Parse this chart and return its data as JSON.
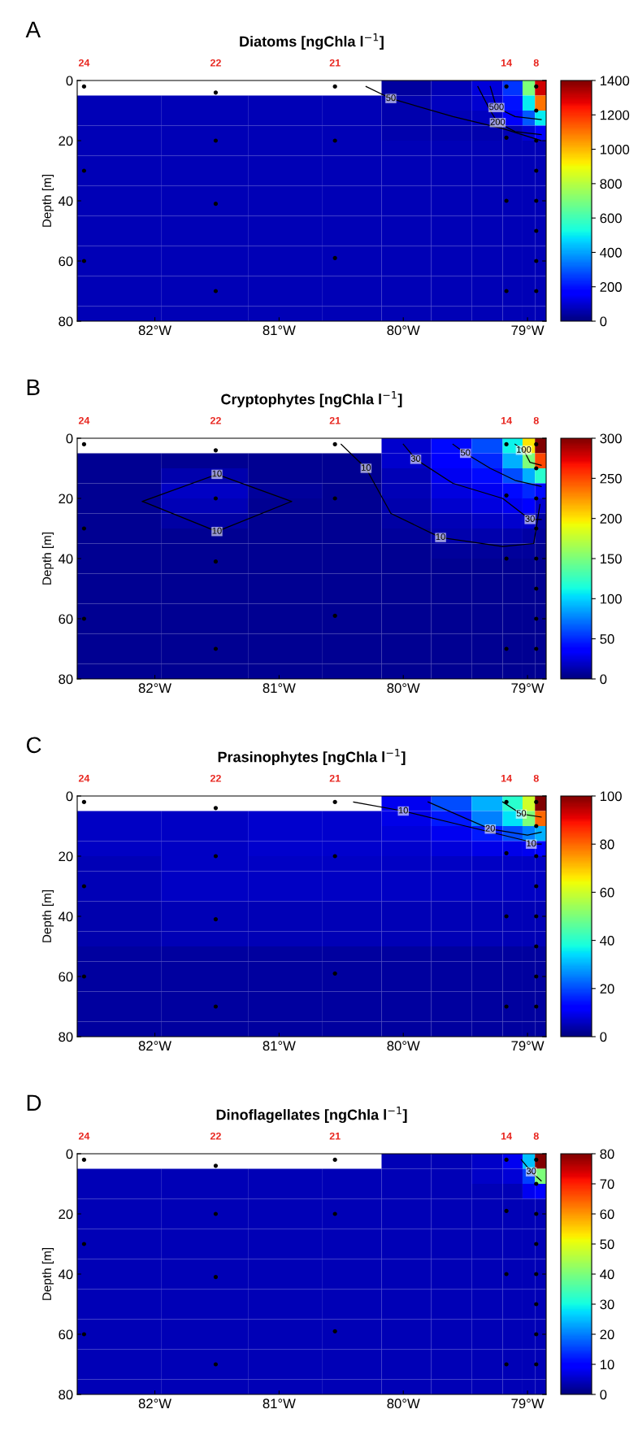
{
  "chart_data": [
    {
      "type": "heatmap",
      "title": "Diatoms [ngChla l$^{−1}$]",
      "ylabel": "Depth [m]",
      "annotations": [
        "A",
        {
          "text": "24",
          "x": -82.57,
          "y": 2
        },
        {
          "text": "22",
          "x": -81.51,
          "y": 4
        },
        {
          "text": "21",
          "x": -80.55,
          "y": 2
        },
        {
          "text": "14",
          "x": -79.17,
          "y": 2
        },
        {
          "text": "8",
          "x": -78.93,
          "y": 2
        },
        {
          "text": "50",
          "x": -80.1,
          "y": 6
        },
        {
          "text": "500",
          "x": -79.25,
          "y": 9
        },
        {
          "text": "200",
          "x": -79.24,
          "y": 14
        }
      ],
      "x": [
        -82.3,
        -81.6,
        -80.9,
        -80.4,
        -79.95,
        -79.6,
        -79.3,
        -79.1,
        -78.98,
        -78.9
      ],
      "cells": [
        [
          null,
          null,
          null,
          null,
          40,
          70,
          110,
          250,
          700,
          1300
        ],
        [
          70,
          70,
          70,
          70,
          60,
          80,
          100,
          200,
          500,
          1100
        ],
        [
          70,
          70,
          70,
          70,
          60,
          70,
          80,
          150,
          300,
          500
        ],
        [
          70,
          70,
          70,
          70,
          60,
          60,
          60,
          70,
          100,
          150
        ],
        [
          70,
          70,
          70,
          70,
          70,
          70,
          70,
          70,
          70,
          70
        ],
        [
          70,
          70,
          70,
          70,
          70,
          70,
          70,
          70,
          70,
          70
        ],
        [
          70,
          70,
          70,
          70,
          70,
          70,
          70,
          70,
          70,
          70
        ],
        [
          70,
          70,
          70,
          70,
          70,
          70,
          70,
          70,
          70,
          70
        ],
        [
          70,
          70,
          70,
          70,
          70,
          70,
          70,
          70,
          70,
          70
        ],
        [
          70,
          70,
          70,
          70,
          70,
          70,
          70,
          70,
          70,
          70
        ],
        [
          70,
          70,
          70,
          70,
          70,
          70,
          70,
          70,
          70,
          70
        ],
        [
          70,
          70,
          70,
          70,
          70,
          70,
          70,
          70,
          70,
          70
        ],
        [
          70,
          70,
          70,
          70,
          70,
          70,
          70,
          70,
          70,
          70
        ],
        [
          70,
          70,
          70,
          70,
          70,
          70,
          70,
          70,
          70,
          70
        ],
        [
          70,
          70,
          70,
          70,
          70,
          70,
          70,
          70,
          70,
          70
        ],
        [
          70,
          70,
          70,
          70,
          70,
          70,
          70,
          70,
          70,
          70
        ]
      ],
      "clim": [
        0,
        1400
      ],
      "cticks": [
        0,
        200,
        400,
        600,
        800,
        1000,
        1200,
        1400
      ],
      "xlim": [
        -82.625,
        -78.85
      ],
      "xticks": [
        {
          "value": -82,
          "label": "82°W"
        },
        {
          "value": -81,
          "label": "81°W"
        },
        {
          "value": -80,
          "label": "80°W"
        },
        {
          "value": -79,
          "label": "79°W"
        }
      ],
      "ylim": [
        80,
        0
      ],
      "yticks": [
        0,
        20,
        40,
        60,
        80
      ],
      "series": [
        {
          "type": "scatter",
          "marker": "circle",
          "color": "#000000",
          "x": [
            -82.57,
            -82.57,
            -82.57,
            -81.51,
            -81.51,
            -81.51,
            -81.51,
            -80.55,
            -80.55,
            -80.55,
            -79.17,
            -79.17,
            -79.17,
            -79.17,
            -78.93,
            -78.93,
            -78.93,
            -78.93,
            -78.93,
            -78.93,
            -78.93,
            -78.93
          ],
          "values": [
            2,
            30,
            60,
            4,
            20,
            41,
            70,
            2,
            20,
            59,
            2,
            19,
            40,
            70,
            2,
            10,
            20,
            30,
            40,
            50,
            60,
            70
          ]
        },
        {
          "type": "line",
          "color": "#000000",
          "x": [
            -80.3,
            -80.1,
            -79.6,
            -79.2,
            -78.89
          ],
          "values": [
            2,
            6,
            12,
            16,
            20
          ]
        },
        {
          "type": "line",
          "color": "#000000",
          "x": [
            -79.3,
            -79.25,
            -79.1,
            -78.89
          ],
          "values": [
            2,
            9,
            12,
            13
          ]
        },
        {
          "type": "line",
          "color": "#000000",
          "x": [
            -79.4,
            -79.3,
            -79.24,
            -79.1,
            -78.89
          ],
          "values": [
            2,
            10,
            14,
            17,
            18
          ]
        }
      ]
    },
    {
      "type": "heatmap",
      "title": "Cryptophytes [ngChla l$^{−1}$]",
      "ylabel": "Depth [m]",
      "annotations": [
        "B",
        {
          "text": "24",
          "x": -82.57,
          "y": 2
        },
        {
          "text": "22",
          "x": -81.51,
          "y": 4
        },
        {
          "text": "21",
          "x": -80.55,
          "y": 2
        },
        {
          "text": "14",
          "x": -79.17,
          "y": 2
        },
        {
          "text": "8",
          "x": -78.93,
          "y": 2
        },
        {
          "text": "10",
          "x": -81.5,
          "y": 12
        },
        {
          "text": "10",
          "x": -81.5,
          "y": 31
        },
        {
          "text": "10",
          "x": -80.3,
          "y": 10
        },
        {
          "text": "30",
          "x": -79.9,
          "y": 7
        },
        {
          "text": "50",
          "x": -79.5,
          "y": 5
        },
        {
          "text": "100",
          "x": -79.03,
          "y": 4
        },
        {
          "text": "30",
          "x": -78.98,
          "y": 27
        },
        {
          "text": "10",
          "x": -79.7,
          "y": 33
        }
      ],
      "x": [
        -82.3,
        -81.6,
        -80.9,
        -80.4,
        -79.95,
        -79.6,
        -79.3,
        -79.1,
        -78.98,
        -78.9
      ],
      "cells": [
        [
          null,
          null,
          null,
          null,
          20,
          40,
          60,
          110,
          200,
          300
        ],
        [
          5,
          5,
          5,
          5,
          20,
          35,
          50,
          90,
          150,
          250
        ],
        [
          5,
          12,
          5,
          5,
          15,
          30,
          40,
          60,
          90,
          120
        ],
        [
          5,
          18,
          8,
          5,
          15,
          25,
          30,
          40,
          50,
          40
        ],
        [
          5,
          15,
          5,
          5,
          12,
          20,
          25,
          30,
          35,
          20
        ],
        [
          5,
          10,
          5,
          5,
          10,
          15,
          18,
          20,
          20,
          10
        ],
        [
          5,
          5,
          5,
          5,
          8,
          12,
          12,
          12,
          10,
          8
        ],
        [
          5,
          5,
          5,
          5,
          5,
          8,
          8,
          8,
          8,
          5
        ],
        [
          5,
          5,
          5,
          5,
          5,
          5,
          5,
          5,
          5,
          5
        ],
        [
          5,
          5,
          5,
          5,
          5,
          5,
          5,
          5,
          5,
          5
        ],
        [
          5,
          5,
          5,
          5,
          5,
          5,
          5,
          5,
          5,
          5
        ],
        [
          5,
          5,
          5,
          5,
          5,
          5,
          5,
          5,
          5,
          5
        ],
        [
          5,
          5,
          5,
          5,
          5,
          5,
          5,
          5,
          5,
          5
        ],
        [
          5,
          5,
          5,
          5,
          5,
          5,
          5,
          5,
          5,
          5
        ],
        [
          5,
          5,
          5,
          5,
          5,
          5,
          5,
          5,
          5,
          5
        ],
        [
          5,
          5,
          5,
          5,
          5,
          5,
          5,
          5,
          5,
          5
        ]
      ],
      "clim": [
        0,
        300
      ],
      "cticks": [
        0,
        50,
        100,
        150,
        200,
        250,
        300
      ],
      "xlim": [
        -82.625,
        -78.85
      ],
      "xticks": [
        {
          "value": -82,
          "label": "82°W"
        },
        {
          "value": -81,
          "label": "81°W"
        },
        {
          "value": -80,
          "label": "80°W"
        },
        {
          "value": -79,
          "label": "79°W"
        }
      ],
      "ylim": [
        80,
        0
      ],
      "yticks": [
        0,
        20,
        40,
        60,
        80
      ],
      "series": [
        {
          "type": "scatter",
          "marker": "circle",
          "color": "#000000",
          "x": [
            -82.57,
            -82.57,
            -82.57,
            -81.51,
            -81.51,
            -81.51,
            -81.51,
            -80.55,
            -80.55,
            -80.55,
            -79.17,
            -79.17,
            -79.17,
            -79.17,
            -78.93,
            -78.93,
            -78.93,
            -78.93,
            -78.93,
            -78.93,
            -78.93,
            -78.93
          ],
          "values": [
            2,
            30,
            60,
            4,
            20,
            41,
            70,
            2,
            20,
            59,
            2,
            19,
            40,
            70,
            2,
            10,
            20,
            30,
            40,
            50,
            60,
            70
          ]
        },
        {
          "type": "line",
          "color": "#000000",
          "x": [
            -82.1,
            -81.5,
            -80.9
          ],
          "values": [
            21,
            12,
            21
          ]
        },
        {
          "type": "line",
          "color": "#000000",
          "x": [
            -82.1,
            -81.5,
            -80.9
          ],
          "values": [
            21,
            31,
            21
          ]
        },
        {
          "type": "line",
          "color": "#000000",
          "x": [
            -80.5,
            -80.3,
            -80.1,
            -79.7,
            -79.2,
            -78.95,
            -78.9
          ],
          "values": [
            2,
            10,
            25,
            33,
            36,
            35,
            22
          ]
        },
        {
          "type": "line",
          "color": "#000000",
          "x": [
            -80.0,
            -79.9,
            -79.6,
            -79.2,
            -78.98,
            -78.89
          ],
          "values": [
            2,
            7,
            15,
            20,
            27,
            27
          ]
        },
        {
          "type": "line",
          "color": "#000000",
          "x": [
            -79.6,
            -79.5,
            -79.3,
            -79.1,
            -78.89
          ],
          "values": [
            2,
            5,
            10,
            14,
            16
          ]
        },
        {
          "type": "line",
          "color": "#000000",
          "x": [
            -79.1,
            -79.03,
            -78.98,
            -78.89
          ],
          "values": [
            2,
            4,
            8,
            9
          ]
        }
      ]
    },
    {
      "type": "heatmap",
      "title": "Prasinophytes [ngChla l$^{−1}$]",
      "ylabel": "Depth [m]",
      "annotations": [
        "C",
        {
          "text": "24",
          "x": -82.57,
          "y": 2
        },
        {
          "text": "22",
          "x": -81.51,
          "y": 4
        },
        {
          "text": "21",
          "x": -80.55,
          "y": 2
        },
        {
          "text": "14",
          "x": -79.17,
          "y": 2
        },
        {
          "text": "8",
          "x": -78.93,
          "y": 2
        },
        {
          "text": "10",
          "x": -80.0,
          "y": 5
        },
        {
          "text": "20",
          "x": -79.3,
          "y": 11
        },
        {
          "text": "50",
          "x": -79.05,
          "y": 6
        },
        {
          "text": "10",
          "x": -78.97,
          "y": 16
        }
      ],
      "x": [
        -82.3,
        -81.6,
        -80.9,
        -80.4,
        -79.95,
        -79.6,
        -79.3,
        -79.1,
        -78.98,
        -78.9
      ],
      "cells": [
        [
          null,
          null,
          null,
          null,
          10,
          20,
          30,
          40,
          60,
          100
        ],
        [
          6,
          6,
          7,
          7,
          9,
          15,
          25,
          35,
          50,
          80
        ],
        [
          6,
          6,
          7,
          7,
          8,
          10,
          15,
          20,
          25,
          30
        ],
        [
          6,
          6,
          7,
          7,
          7,
          8,
          9,
          9,
          10,
          12
        ],
        [
          5,
          6,
          6,
          6,
          6,
          6,
          6,
          6,
          6,
          6
        ],
        [
          5,
          6,
          6,
          6,
          6,
          6,
          6,
          6,
          6,
          6
        ],
        [
          5,
          6,
          6,
          6,
          6,
          6,
          6,
          6,
          6,
          6
        ],
        [
          4,
          5,
          5,
          5,
          5,
          5,
          5,
          5,
          5,
          5
        ],
        [
          4,
          5,
          5,
          5,
          5,
          5,
          5,
          5,
          5,
          5
        ],
        [
          4,
          5,
          5,
          5,
          5,
          5,
          5,
          5,
          5,
          5
        ],
        [
          3,
          3,
          3,
          3,
          3,
          3,
          3,
          3,
          3,
          3
        ],
        [
          3,
          3,
          3,
          3,
          3,
          3,
          3,
          3,
          3,
          3
        ],
        [
          3,
          3,
          3,
          3,
          3,
          3,
          3,
          3,
          3,
          3
        ],
        [
          3,
          3,
          3,
          3,
          3,
          3,
          3,
          3,
          3,
          3
        ],
        [
          3,
          3,
          3,
          3,
          3,
          3,
          3,
          3,
          3,
          3
        ],
        [
          3,
          3,
          3,
          3,
          3,
          3,
          3,
          3,
          3,
          3
        ]
      ],
      "clim": [
        0,
        100
      ],
      "cticks": [
        0,
        20,
        40,
        60,
        80,
        100
      ],
      "xlim": [
        -82.625,
        -78.85
      ],
      "xticks": [
        {
          "value": -82,
          "label": "82°W"
        },
        {
          "value": -81,
          "label": "81°W"
        },
        {
          "value": -80,
          "label": "80°W"
        },
        {
          "value": -79,
          "label": "79°W"
        }
      ],
      "ylim": [
        80,
        0
      ],
      "yticks": [
        0,
        20,
        40,
        60,
        80
      ],
      "series": [
        {
          "type": "scatter",
          "marker": "circle",
          "color": "#000000",
          "x": [
            -82.57,
            -82.57,
            -82.57,
            -81.51,
            -81.51,
            -81.51,
            -81.51,
            -80.55,
            -80.55,
            -80.55,
            -79.17,
            -79.17,
            -79.17,
            -79.17,
            -78.93,
            -78.93,
            -78.93,
            -78.93,
            -78.93,
            -78.93,
            -78.93,
            -78.93
          ],
          "values": [
            2,
            30,
            60,
            4,
            20,
            41,
            70,
            2,
            20,
            59,
            2,
            19,
            40,
            70,
            2,
            10,
            20,
            30,
            40,
            50,
            60,
            70
          ]
        },
        {
          "type": "line",
          "color": "#000000",
          "x": [
            -80.4,
            -80.0,
            -79.5,
            -79.0,
            -78.97,
            -78.89
          ],
          "values": [
            2,
            5,
            10,
            15,
            16,
            16
          ]
        },
        {
          "type": "line",
          "color": "#000000",
          "x": [
            -79.8,
            -79.3,
            -79.0,
            -78.89
          ],
          "values": [
            2,
            11,
            13,
            12
          ]
        },
        {
          "type": "line",
          "color": "#000000",
          "x": [
            -79.2,
            -79.05,
            -78.89
          ],
          "values": [
            2,
            6,
            7
          ]
        }
      ]
    },
    {
      "type": "heatmap",
      "title": "Dinoflagellates [ngChla l$^{−1}$]",
      "ylabel": "Depth [m]",
      "annotations": [
        "D",
        {
          "text": "24",
          "x": -82.57,
          "y": 2
        },
        {
          "text": "22",
          "x": -81.51,
          "y": 4
        },
        {
          "text": "21",
          "x": -80.55,
          "y": 2
        },
        {
          "text": "14",
          "x": -79.17,
          "y": 2
        },
        {
          "text": "8",
          "x": -78.93,
          "y": 2
        },
        {
          "text": "30",
          "x": -78.97,
          "y": 6
        }
      ],
      "x": [
        -82.3,
        -81.6,
        -80.9,
        -80.4,
        -79.95,
        -79.6,
        -79.3,
        -79.1,
        -78.98,
        -78.9
      ],
      "cells": [
        [
          null,
          null,
          null,
          null,
          4,
          4,
          5,
          8,
          25,
          80
        ],
        [
          4,
          4,
          4,
          4,
          4,
          4,
          5,
          6,
          15,
          40
        ],
        [
          4,
          4,
          4,
          4,
          4,
          4,
          4,
          4,
          8,
          10
        ],
        [
          4,
          4,
          4,
          4,
          4,
          4,
          4,
          4,
          4,
          4
        ],
        [
          4,
          4,
          4,
          4,
          4,
          4,
          4,
          4,
          4,
          4
        ],
        [
          4,
          4,
          4,
          4,
          4,
          4,
          4,
          4,
          4,
          4
        ],
        [
          4,
          4,
          4,
          4,
          4,
          4,
          4,
          4,
          4,
          4
        ],
        [
          4,
          4,
          4,
          4,
          4,
          4,
          4,
          4,
          4,
          4
        ],
        [
          4,
          4,
          4,
          4,
          4,
          4,
          4,
          4,
          4,
          4
        ],
        [
          4,
          4,
          4,
          4,
          4,
          4,
          4,
          4,
          4,
          4
        ],
        [
          4,
          4,
          4,
          4,
          4,
          4,
          4,
          4,
          4,
          4
        ],
        [
          4,
          4,
          4,
          4,
          4,
          4,
          4,
          4,
          4,
          4
        ],
        [
          4,
          4,
          4,
          4,
          4,
          4,
          4,
          4,
          4,
          4
        ],
        [
          4,
          4,
          4,
          4,
          4,
          4,
          4,
          4,
          4,
          4
        ],
        [
          4,
          4,
          4,
          4,
          4,
          4,
          4,
          4,
          4,
          4
        ],
        [
          4,
          4,
          4,
          4,
          4,
          4,
          4,
          4,
          4,
          4
        ]
      ],
      "clim": [
        0,
        80
      ],
      "cticks": [
        0,
        10,
        20,
        30,
        40,
        50,
        60,
        70,
        80
      ],
      "xlim": [
        -82.625,
        -78.85
      ],
      "xticks": [
        {
          "value": -82,
          "label": "82°W"
        },
        {
          "value": -81,
          "label": "81°W"
        },
        {
          "value": -80,
          "label": "80°W"
        },
        {
          "value": -79,
          "label": "79°W"
        }
      ],
      "ylim": [
        80,
        0
      ],
      "yticks": [
        0,
        20,
        40,
        60,
        80
      ],
      "series": [
        {
          "type": "scatter",
          "marker": "circle",
          "color": "#000000",
          "x": [
            -82.57,
            -82.57,
            -82.57,
            -81.51,
            -81.51,
            -81.51,
            -81.51,
            -80.55,
            -80.55,
            -80.55,
            -79.17,
            -79.17,
            -79.17,
            -79.17,
            -78.93,
            -78.93,
            -78.93,
            -78.93,
            -78.93,
            -78.93,
            -78.93,
            -78.93
          ],
          "values": [
            2,
            30,
            60,
            4,
            20,
            41,
            70,
            2,
            20,
            59,
            2,
            19,
            40,
            70,
            2,
            10,
            20,
            30,
            40,
            50,
            60,
            70
          ]
        },
        {
          "type": "line",
          "color": "#000000",
          "x": [
            -79.05,
            -78.97,
            -78.89
          ],
          "values": [
            2,
            6,
            9
          ]
        }
      ]
    }
  ]
}
